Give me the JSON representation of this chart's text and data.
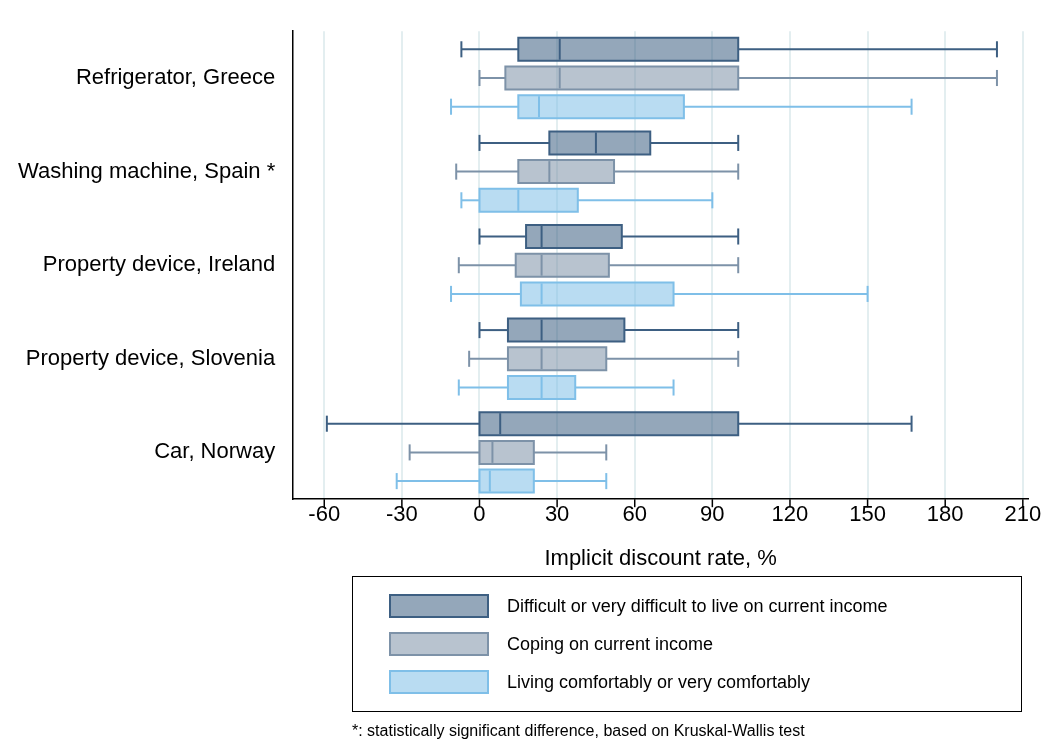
{
  "chart_data": {
    "type": "box",
    "orientation": "horizontal",
    "xlabel": "Implicit discount rate, %",
    "categories": [
      "Refrigerator, Greece",
      "Washing machine, Spain *",
      "Property device, Ireland",
      "Property device, Slovenia",
      "Car, Norway"
    ],
    "xlim": [
      -72,
      212
    ],
    "xticks": [
      -60,
      -30,
      0,
      30,
      60,
      90,
      120,
      150,
      180,
      210
    ],
    "grid": "x",
    "legend": "bottom",
    "series": [
      {
        "name": "Difficult or very difficult to live on current income",
        "color": "#3d5f82",
        "boxes": [
          {
            "low": -7,
            "q1": 15,
            "median": 31,
            "q3": 100,
            "high": 200
          },
          {
            "low": 0,
            "q1": 27,
            "median": 45,
            "q3": 66,
            "high": 100
          },
          {
            "low": 0,
            "q1": 18,
            "median": 24,
            "q3": 55,
            "high": 100
          },
          {
            "low": 0,
            "q1": 11,
            "median": 24,
            "q3": 56,
            "high": 100
          },
          {
            "low": -59,
            "q1": 0,
            "median": 8,
            "q3": 100,
            "high": 167
          }
        ]
      },
      {
        "name": "Coping on current income",
        "color": "#7d92a8",
        "boxes": [
          {
            "low": 0,
            "q1": 10,
            "median": 31,
            "q3": 100,
            "high": 200
          },
          {
            "low": -9,
            "q1": 15,
            "median": 27,
            "q3": 52,
            "high": 100
          },
          {
            "low": -8,
            "q1": 14,
            "median": 24,
            "q3": 50,
            "high": 100
          },
          {
            "low": -4,
            "q1": 11,
            "median": 24,
            "q3": 49,
            "high": 100
          },
          {
            "low": -27,
            "q1": 0,
            "median": 5,
            "q3": 21,
            "high": 49
          }
        ]
      },
      {
        "name": "Living comfortably or very comfortably",
        "color": "#7fbfe8",
        "boxes": [
          {
            "low": -11,
            "q1": 15,
            "median": 23,
            "q3": 79,
            "high": 167
          },
          {
            "low": -7,
            "q1": 0,
            "median": 15,
            "q3": 38,
            "high": 90
          },
          {
            "low": -11,
            "q1": 16,
            "median": 24,
            "q3": 75,
            "high": 150
          },
          {
            "low": -8,
            "q1": 11,
            "median": 24,
            "q3": 37,
            "high": 75
          },
          {
            "low": -32,
            "q1": 0,
            "median": 4,
            "q3": 21,
            "high": 49
          }
        ]
      }
    ],
    "annotations": [
      "*: statistically significant difference, based on Kruskal-Wallis test"
    ]
  }
}
